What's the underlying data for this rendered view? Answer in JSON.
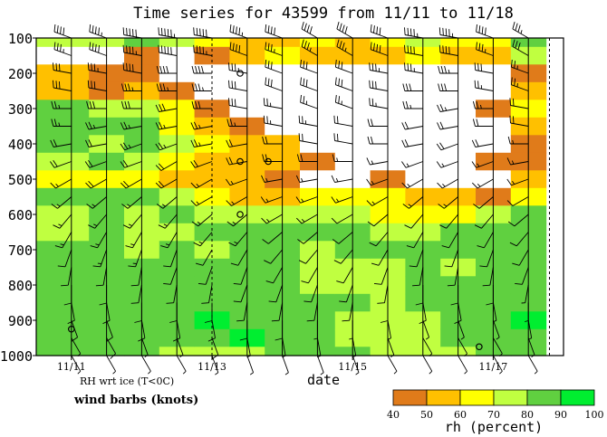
{
  "chart_data": {
    "type": "heatmap",
    "title": "Time series for 43599 from 11/11 to 11/18",
    "xlabel": "date",
    "ylabel": "",
    "y_axis": {
      "reversed": true,
      "ylim": [
        100,
        1000
      ],
      "ticks": [
        "100",
        "200",
        "300",
        "400",
        "500",
        "600",
        "700",
        "800",
        "900",
        "1000"
      ]
    },
    "x_axis": {
      "xlim": [
        0,
        7.5
      ],
      "ticks": [
        {
          "pos": 0.5,
          "label": "11/11"
        },
        {
          "pos": 2.5,
          "label": "11/13"
        },
        {
          "pos": 4.5,
          "label": "11/15"
        },
        {
          "pos": 6.5,
          "label": "11/17"
        }
      ]
    },
    "notes": [
      "RH wrt ice (T<0C)",
      "wind barbs (knots)"
    ],
    "colorbar": {
      "label": "rh (percent)",
      "ticks": [
        "40",
        "50",
        "60",
        "70",
        "80",
        "90",
        "100"
      ],
      "colors": [
        "#e07b1a",
        "#ffc000",
        "#ffff00",
        "#c0ff40",
        "#60d040",
        "#00ee30"
      ]
    },
    "levels": [
      100,
      150,
      200,
      250,
      300,
      350,
      400,
      450,
      500,
      550,
      600,
      650,
      700,
      750,
      800,
      850,
      900,
      950,
      1000
    ],
    "times": [
      0.5,
      1.0,
      1.5,
      2.0,
      2.5,
      3.0,
      3.5,
      4.0,
      4.5,
      5.0,
      5.5,
      6.0,
      6.5,
      7.0
    ],
    "rh_grid": [
      [
        75,
        70,
        80,
        75,
        60,
        55,
        50,
        60,
        55,
        60,
        70,
        65,
        60,
        80
      ],
      [
        30,
        35,
        40,
        30,
        45,
        55,
        60,
        55,
        50,
        55,
        60,
        55,
        55,
        75
      ],
      [
        55,
        45,
        40,
        35,
        20,
        10,
        15,
        20,
        20,
        10,
        10,
        20,
        25,
        45
      ],
      [
        55,
        45,
        55,
        40,
        30,
        10,
        10,
        10,
        10,
        10,
        10,
        10,
        30,
        50
      ],
      [
        85,
        75,
        70,
        60,
        45,
        20,
        10,
        10,
        10,
        10,
        10,
        20,
        40,
        60
      ],
      [
        85,
        80,
        80,
        65,
        55,
        45,
        15,
        10,
        10,
        10,
        10,
        20,
        30,
        50
      ],
      [
        85,
        75,
        85,
        70,
        60,
        55,
        50,
        30,
        20,
        10,
        10,
        25,
        30,
        45
      ],
      [
        70,
        80,
        75,
        65,
        55,
        55,
        50,
        45,
        30,
        15,
        10,
        30,
        40,
        45
      ],
      [
        60,
        65,
        65,
        55,
        50,
        50,
        40,
        35,
        35,
        40,
        30,
        20,
        30,
        55
      ],
      [
        85,
        80,
        85,
        75,
        65,
        55,
        55,
        65,
        65,
        60,
        55,
        50,
        45,
        60
      ],
      [
        75,
        80,
        75,
        85,
        75,
        75,
        75,
        75,
        75,
        65,
        65,
        65,
        75,
        80
      ],
      [
        75,
        80,
        75,
        75,
        80,
        80,
        85,
        85,
        85,
        75,
        75,
        80,
        85,
        85
      ],
      [
        85,
        85,
        75,
        80,
        75,
        85,
        80,
        75,
        85,
        80,
        85,
        85,
        80,
        85
      ],
      [
        85,
        85,
        80,
        80,
        85,
        85,
        85,
        75,
        75,
        75,
        80,
        75,
        85,
        85
      ],
      [
        85,
        85,
        85,
        80,
        85,
        85,
        80,
        75,
        75,
        75,
        85,
        85,
        85,
        85
      ],
      [
        80,
        85,
        85,
        85,
        85,
        85,
        80,
        80,
        80,
        75,
        85,
        85,
        85,
        85
      ],
      [
        85,
        85,
        85,
        85,
        90,
        85,
        85,
        85,
        75,
        75,
        75,
        85,
        85,
        90
      ],
      [
        85,
        80,
        85,
        80,
        85,
        90,
        85,
        80,
        75,
        75,
        75,
        85,
        85,
        85
      ],
      [
        85,
        80,
        85,
        75,
        75,
        75,
        85,
        85,
        85,
        75,
        75,
        75,
        85,
        85
      ]
    ],
    "wind_speed_knots": [
      [
        40,
        45,
        50,
        55,
        50,
        45,
        40,
        40,
        40,
        40,
        45,
        45,
        40,
        35
      ],
      [
        35,
        40,
        45,
        50,
        45,
        40,
        35,
        35,
        35,
        40,
        40,
        40,
        35,
        30
      ],
      [
        30,
        35,
        40,
        40,
        40,
        35,
        30,
        30,
        30,
        35,
        35,
        35,
        30,
        25
      ],
      [
        30,
        30,
        35,
        35,
        35,
        30,
        30,
        30,
        30,
        30,
        30,
        30,
        25,
        25
      ],
      [
        25,
        30,
        30,
        30,
        30,
        30,
        25,
        25,
        25,
        25,
        25,
        25,
        25,
        20
      ],
      [
        25,
        25,
        25,
        25,
        25,
        25,
        25,
        25,
        20,
        20,
        20,
        20,
        20,
        20
      ],
      [
        20,
        20,
        25,
        25,
        25,
        20,
        20,
        20,
        20,
        20,
        20,
        20,
        20,
        15
      ],
      [
        20,
        20,
        20,
        20,
        20,
        20,
        20,
        20,
        15,
        15,
        15,
        15,
        15,
        15
      ],
      [
        15,
        20,
        20,
        20,
        15,
        15,
        15,
        15,
        15,
        15,
        15,
        15,
        15,
        15
      ],
      [
        15,
        15,
        15,
        15,
        15,
        15,
        15,
        15,
        15,
        15,
        15,
        15,
        10,
        10
      ],
      [
        15,
        15,
        15,
        15,
        15,
        15,
        15,
        15,
        10,
        10,
        10,
        10,
        10,
        10
      ],
      [
        15,
        15,
        15,
        15,
        15,
        15,
        10,
        10,
        10,
        10,
        10,
        10,
        10,
        10
      ],
      [
        10,
        15,
        15,
        10,
        10,
        10,
        10,
        10,
        10,
        10,
        10,
        10,
        10,
        10
      ],
      [
        10,
        10,
        10,
        10,
        10,
        10,
        10,
        10,
        10,
        10,
        10,
        10,
        10,
        10
      ],
      [
        10,
        10,
        10,
        10,
        10,
        10,
        10,
        10,
        10,
        10,
        10,
        10,
        10,
        5
      ],
      [
        10,
        10,
        10,
        10,
        10,
        10,
        10,
        10,
        10,
        10,
        10,
        10,
        5,
        5
      ],
      [
        10,
        10,
        10,
        10,
        10,
        10,
        10,
        5,
        5,
        5,
        5,
        5,
        5,
        5
      ],
      [
        5,
        10,
        5,
        5,
        10,
        5,
        5,
        5,
        5,
        5,
        5,
        5,
        5,
        5
      ],
      [
        5,
        5,
        5,
        5,
        5,
        5,
        5,
        5,
        5,
        5,
        5,
        5,
        5,
        5
      ]
    ],
    "wind_dir_deg": [
      [
        290,
        290,
        280,
        280,
        280,
        290,
        290,
        300,
        300,
        290,
        280,
        280,
        290,
        300
      ],
      [
        290,
        290,
        280,
        280,
        280,
        290,
        290,
        300,
        300,
        290,
        280,
        280,
        290,
        300
      ],
      [
        280,
        280,
        280,
        270,
        270,
        280,
        290,
        290,
        290,
        280,
        280,
        270,
        280,
        290
      ],
      [
        280,
        280,
        270,
        270,
        270,
        280,
        290,
        290,
        290,
        280,
        270,
        270,
        280,
        290
      ],
      [
        270,
        270,
        270,
        260,
        270,
        280,
        280,
        290,
        290,
        280,
        270,
        260,
        270,
        280
      ],
      [
        270,
        260,
        260,
        260,
        260,
        270,
        280,
        280,
        280,
        270,
        260,
        260,
        270,
        280
      ],
      [
        260,
        260,
        250,
        250,
        260,
        260,
        270,
        280,
        280,
        270,
        260,
        250,
        260,
        270
      ],
      [
        250,
        250,
        250,
        240,
        250,
        260,
        270,
        270,
        270,
        260,
        250,
        250,
        250,
        260
      ],
      [
        240,
        240,
        240,
        240,
        240,
        250,
        260,
        260,
        260,
        250,
        240,
        240,
        240,
        250
      ],
      [
        230,
        230,
        230,
        230,
        240,
        240,
        250,
        250,
        250,
        240,
        230,
        230,
        230,
        240
      ],
      [
        220,
        220,
        220,
        220,
        230,
        230,
        240,
        240,
        240,
        230,
        220,
        220,
        220,
        230
      ],
      [
        210,
        210,
        210,
        210,
        220,
        220,
        230,
        230,
        230,
        220,
        210,
        210,
        210,
        220
      ],
      [
        200,
        200,
        200,
        200,
        210,
        210,
        220,
        220,
        220,
        210,
        200,
        200,
        200,
        210
      ],
      [
        190,
        190,
        190,
        200,
        200,
        200,
        210,
        210,
        210,
        200,
        190,
        190,
        190,
        200
      ],
      [
        180,
        180,
        190,
        190,
        190,
        200,
        200,
        200,
        200,
        190,
        180,
        180,
        180,
        190
      ],
      [
        170,
        170,
        180,
        180,
        180,
        190,
        190,
        190,
        190,
        180,
        170,
        170,
        170,
        180
      ],
      [
        160,
        160,
        170,
        170,
        170,
        180,
        180,
        180,
        180,
        170,
        160,
        160,
        160,
        170
      ],
      [
        150,
        150,
        160,
        160,
        160,
        170,
        170,
        170,
        170,
        160,
        150,
        150,
        150,
        160
      ],
      [
        150,
        150,
        150,
        150,
        160,
        160,
        160,
        160,
        160,
        150,
        150,
        150,
        150,
        150
      ]
    ],
    "calm_points": [
      {
        "t": 0.5,
        "p": 925
      },
      {
        "t": 2.9,
        "p": 200
      },
      {
        "t": 2.9,
        "p": 450
      },
      {
        "t": 2.9,
        "p": 600
      },
      {
        "t": 3.3,
        "p": 450
      },
      {
        "t": 6.3,
        "p": 975
      }
    ]
  }
}
